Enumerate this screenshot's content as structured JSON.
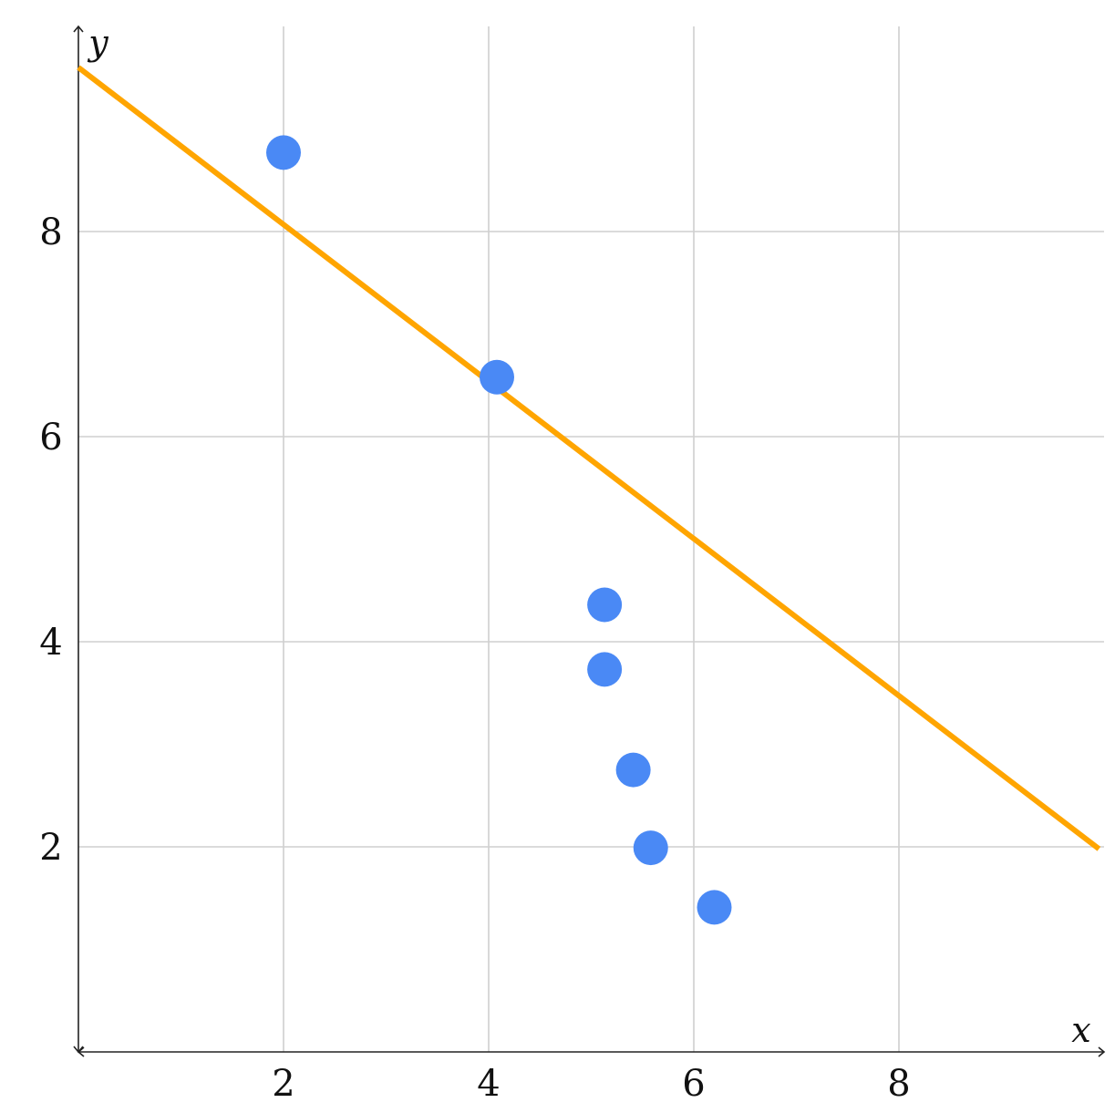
{
  "chart_data": {
    "type": "scatter",
    "title": "",
    "xlabel": "x",
    "ylabel": "y",
    "xlim": [
      0,
      10
    ],
    "ylim": [
      0,
      10
    ],
    "grid": true,
    "x_ticks": [
      2,
      4,
      6,
      8
    ],
    "y_ticks": [
      2,
      4,
      6,
      8
    ],
    "points": [
      {
        "x": 2.0,
        "y": 8.77
      },
      {
        "x": 4.08,
        "y": 6.58
      },
      {
        "x": 5.13,
        "y": 4.36
      },
      {
        "x": 5.13,
        "y": 3.73
      },
      {
        "x": 5.41,
        "y": 2.75
      },
      {
        "x": 5.58,
        "y": 1.99
      },
      {
        "x": 6.2,
        "y": 1.41
      }
    ],
    "trend_line": {
      "x": [
        0.0,
        9.95
      ],
      "y": [
        9.6,
        1.98
      ]
    },
    "colors": {
      "points": "#4a89f5",
      "trend_line": "#ffa500",
      "grid": "#cfcfcf",
      "axis": "#222222"
    }
  }
}
